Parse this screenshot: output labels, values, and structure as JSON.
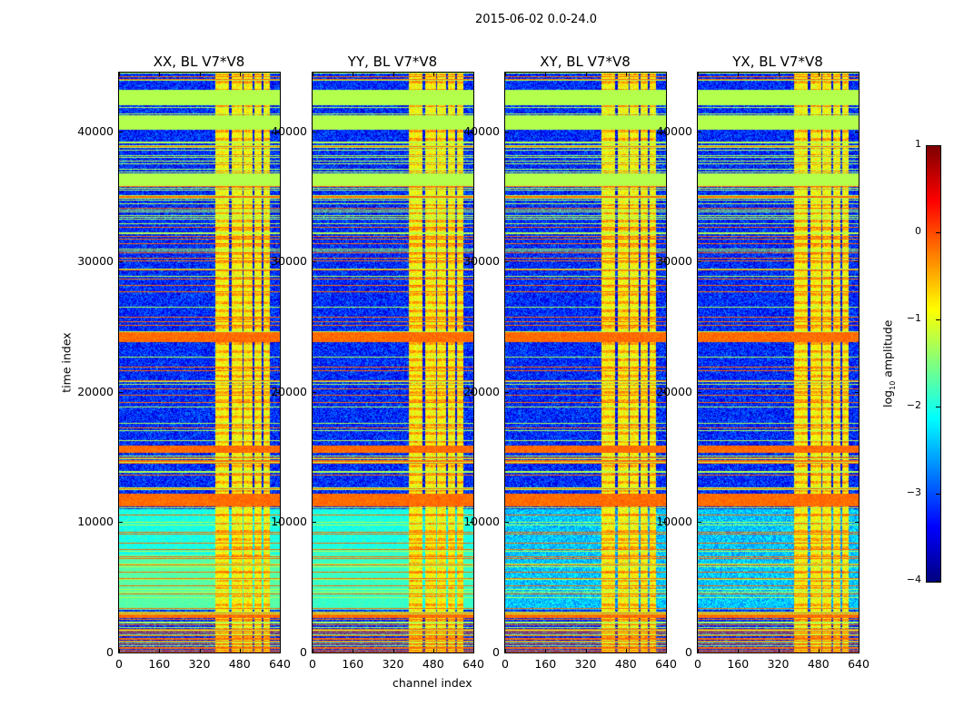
{
  "chart_data": {
    "type": "heatmap",
    "title": "2015-06-02 0.0-24.0",
    "xlabel": "channel index",
    "ylabel": "time index",
    "panels": [
      {
        "title": "XX, BL V7*V8",
        "pol": "XX"
      },
      {
        "title": "YY, BL V7*V8",
        "pol": "YY"
      },
      {
        "title": "XY, BL V7*V8",
        "pol": "XY"
      },
      {
        "title": "YX, BL V7*V8",
        "pol": "YX"
      }
    ],
    "xlim": [
      0,
      640
    ],
    "ylim": [
      0,
      44500
    ],
    "xticks": [
      "0",
      "160",
      "320",
      "480",
      "640"
    ],
    "xtick_values": [
      0,
      160,
      320,
      480,
      640
    ],
    "yticks": [
      "0",
      "10000",
      "20000",
      "30000",
      "40000"
    ],
    "ytick_values": [
      0,
      10000,
      20000,
      30000,
      40000
    ],
    "colorbar": {
      "label": "log10 amplitude",
      "label_base": "log",
      "label_sub": "10",
      "label_rest": " amplitude",
      "colormap": "jet",
      "range": [
        -4,
        1
      ],
      "ticks": [
        "1",
        "0",
        "−1",
        "−2",
        "−3",
        "−4"
      ],
      "tick_values": [
        1,
        0,
        -1,
        -2,
        -3,
        -4
      ]
    },
    "features": {
      "rfi_channel_range": [
        385,
        600
      ],
      "flagged_time_bands": [
        [
          42000,
          43200
        ],
        [
          40200,
          41200
        ],
        [
          35800,
          36800
        ]
      ],
      "strong_time_bands": [
        [
          23800,
          24600
        ],
        [
          11200,
          12200
        ],
        [
          15300,
          15900
        ]
      ],
      "background_level": -3.2
    }
  }
}
